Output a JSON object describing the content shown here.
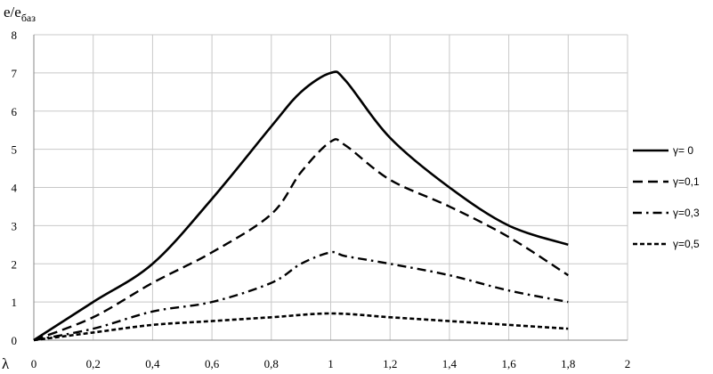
{
  "chart_data": {
    "type": "line",
    "title": "",
    "ylabel": "e/e",
    "ylabel_sub": "баз",
    "xlabel": "λ",
    "xlim": [
      0,
      2
    ],
    "ylim": [
      0,
      8
    ],
    "x_ticks": [
      0,
      0.2,
      0.4,
      0.6,
      0.8,
      1,
      1.2,
      1.4,
      1.6,
      1.8,
      2
    ],
    "x_tick_labels": [
      "0",
      "0,2",
      "0,4",
      "0,6",
      "0,8",
      "1",
      "1,2",
      "1,4",
      "1,6",
      "1,8",
      "2"
    ],
    "y_ticks": [
      0,
      1,
      2,
      3,
      4,
      5,
      6,
      7,
      8
    ],
    "y_tick_labels": [
      "0",
      "1",
      "2",
      "3",
      "4",
      "5",
      "6",
      "7",
      "8"
    ],
    "grid": true,
    "legend_position": "right",
    "series": [
      {
        "name": "γ= 0",
        "style": "solid",
        "x": [
          0,
          0.2,
          0.4,
          0.6,
          0.8,
          0.9,
          1,
          1.05,
          1.2,
          1.4,
          1.6,
          1.8
        ],
        "y": [
          0,
          1,
          2,
          3.7,
          5.6,
          6.5,
          7,
          6.8,
          5.3,
          4,
          3,
          2.5
        ]
      },
      {
        "name": "γ=0,1",
        "style": "dashed",
        "x": [
          0,
          0.2,
          0.4,
          0.6,
          0.8,
          0.9,
          1,
          1.05,
          1.2,
          1.4,
          1.6,
          1.8
        ],
        "y": [
          0,
          0.6,
          1.5,
          2.3,
          3.3,
          4.4,
          5.2,
          5.1,
          4.2,
          3.5,
          2.7,
          1.7
        ]
      },
      {
        "name": "γ=0,3",
        "style": "dashdot",
        "x": [
          0,
          0.2,
          0.4,
          0.6,
          0.8,
          0.9,
          1,
          1.05,
          1.2,
          1.4,
          1.6,
          1.8
        ],
        "y": [
          0,
          0.3,
          0.75,
          1,
          1.5,
          2,
          2.3,
          2.2,
          2,
          1.7,
          1.3,
          1
        ]
      },
      {
        "name": "γ=0,5",
        "style": "short-dash",
        "x": [
          0,
          0.2,
          0.4,
          0.6,
          0.8,
          1,
          1.2,
          1.4,
          1.6,
          1.8
        ],
        "y": [
          0,
          0.2,
          0.4,
          0.5,
          0.6,
          0.7,
          0.6,
          0.5,
          0.4,
          0.3
        ]
      }
    ]
  }
}
